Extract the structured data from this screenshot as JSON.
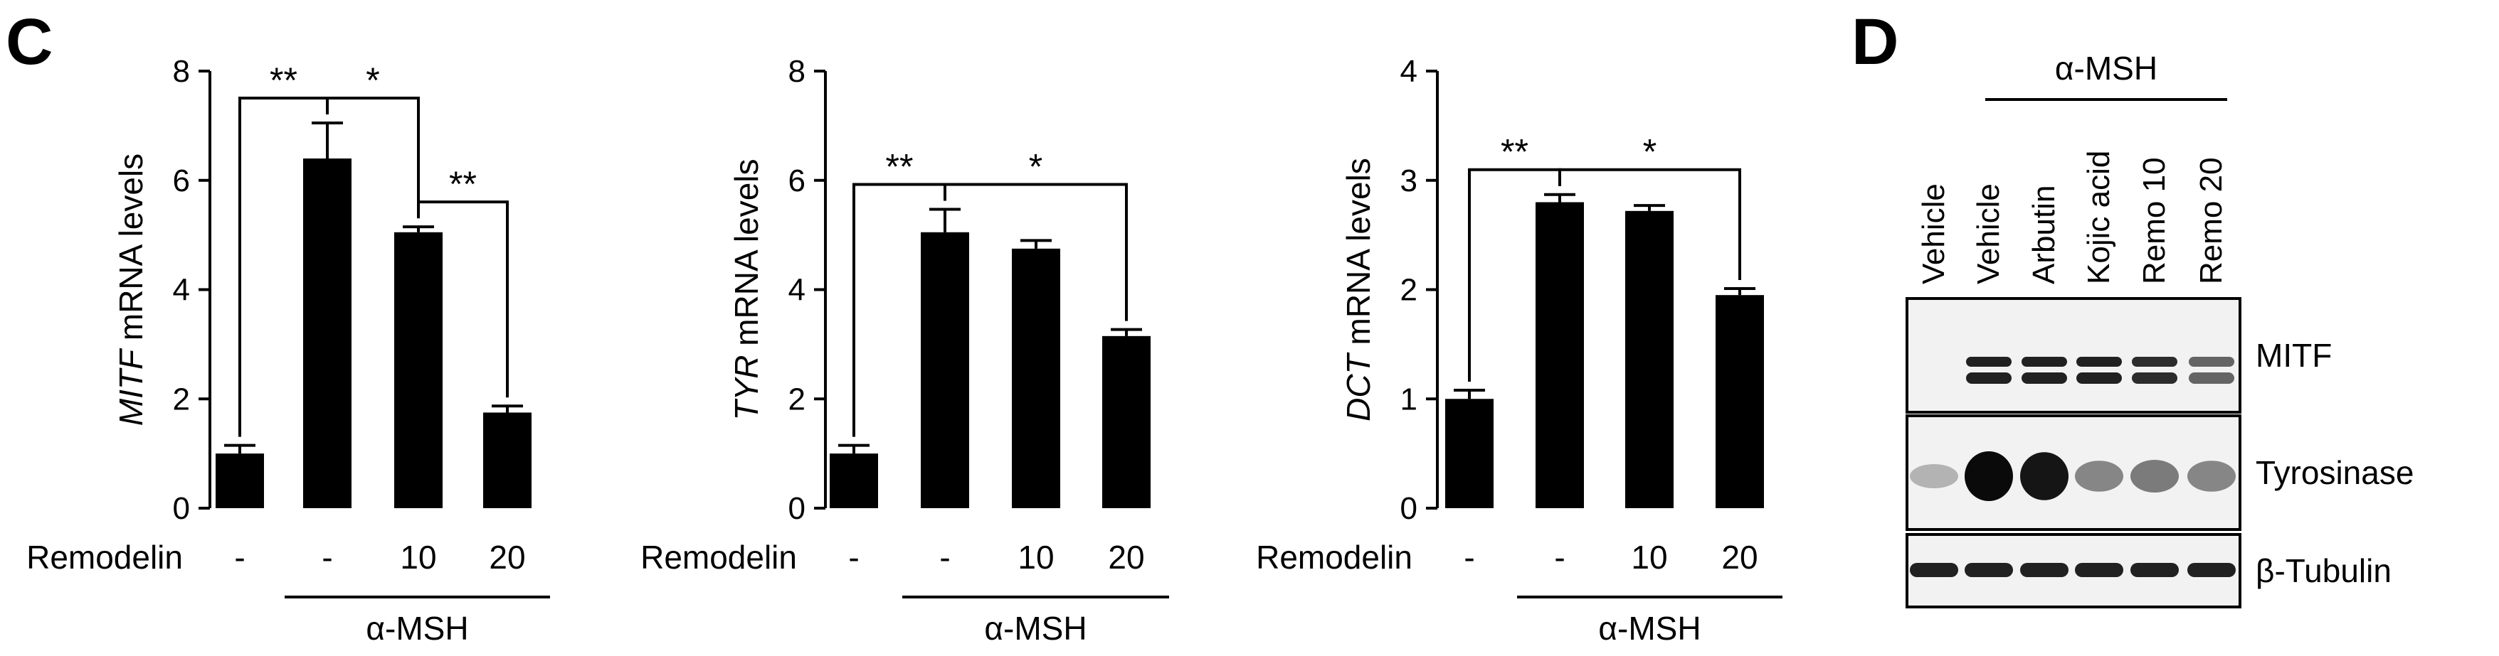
{
  "chart_data": [
    {
      "type": "bar",
      "ylabel_italic": "MITF",
      "ylabel_rest": "mRNA  levels",
      "ylim": [
        0,
        8
      ],
      "yticks": [
        "0",
        "2",
        "4",
        "6",
        "8"
      ],
      "row_label": "Remodelin",
      "categories": [
        "-",
        "-",
        "10",
        "20"
      ],
      "values": [
        1.0,
        6.4,
        5.05,
        1.75
      ],
      "errors": [
        0.15,
        0.65,
        0.1,
        0.12
      ],
      "group_label": "α-MSH",
      "significance": [
        {
          "pair": [
            0,
            1
          ],
          "label": "**"
        },
        {
          "pair": [
            1,
            2
          ],
          "label": "*"
        },
        {
          "pair": [
            2,
            3
          ],
          "label": "**"
        }
      ]
    },
    {
      "type": "bar",
      "ylabel_italic": "TYR",
      "ylabel_rest": "mRNA  levels",
      "ylim": [
        0,
        8
      ],
      "yticks": [
        "0",
        "2",
        "4",
        "6",
        "8"
      ],
      "row_label": "Remodelin",
      "categories": [
        "-",
        "-",
        "10",
        "20"
      ],
      "values": [
        1.0,
        5.05,
        4.75,
        3.15
      ],
      "errors": [
        0.15,
        0.42,
        0.15,
        0.12
      ],
      "group_label": "α-MSH",
      "significance": [
        {
          "pair": [
            0,
            1
          ],
          "label": "**"
        },
        {
          "pair": [
            1,
            3
          ],
          "label": "*"
        }
      ]
    },
    {
      "type": "bar",
      "ylabel_italic": "DCT",
      "ylabel_rest": "mRNA  levels",
      "ylim": [
        0,
        4
      ],
      "yticks": [
        "0",
        "1",
        "2",
        "3",
        "4"
      ],
      "row_label": "Remodelin",
      "categories": [
        "-",
        "-",
        "10",
        "20"
      ],
      "values": [
        1.0,
        2.8,
        2.72,
        1.95
      ],
      "errors": [
        0.08,
        0.07,
        0.05,
        0.06
      ],
      "group_label": "α-MSH",
      "significance": [
        {
          "pair": [
            0,
            1
          ],
          "label": "**"
        },
        {
          "pair": [
            1,
            3
          ],
          "label": "*"
        }
      ]
    }
  ],
  "panel_c": "C",
  "panel_d": "D",
  "western_blot": {
    "header": "α-MSH",
    "lanes": [
      "Vehicle",
      "Vehicle",
      "Arbutin",
      "Kojic acid",
      "Remo 10",
      "Remo 20"
    ],
    "blots": [
      {
        "label": "MITF",
        "intensities": [
          0.0,
          0.9,
          0.9,
          0.9,
          0.85,
          0.6
        ]
      },
      {
        "label": "Tyrosinase",
        "intensities": [
          0.25,
          1.0,
          0.95,
          0.45,
          0.5,
          0.45
        ]
      },
      {
        "label": "β-Tubulin",
        "intensities": [
          0.9,
          0.9,
          0.9,
          0.9,
          0.9,
          0.9
        ]
      }
    ]
  }
}
